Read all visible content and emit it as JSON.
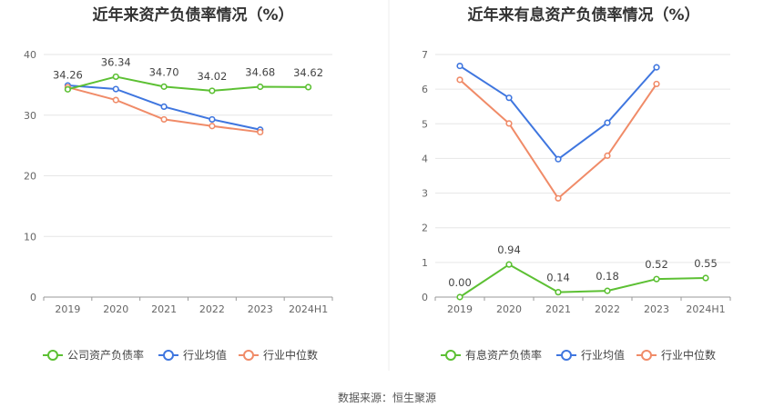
{
  "source": "数据来源：恒生聚源",
  "colors": {
    "company": "#5cc033",
    "avg": "#3f76df",
    "median": "#f08b68"
  },
  "chart_data": [
    {
      "type": "line",
      "title": "近年来资产负债率情况（%）",
      "categories": [
        "2019",
        "2020",
        "2021",
        "2022",
        "2023",
        "2024H1"
      ],
      "ylim": [
        0,
        40
      ],
      "yticks": [
        0,
        10,
        20,
        30,
        40
      ],
      "grid": true,
      "legend": "bottom",
      "series": [
        {
          "name": "公司资产负债率",
          "color": "#5cc033",
          "labeled": true,
          "values": [
            34.26,
            36.34,
            34.7,
            34.02,
            34.68,
            34.62
          ]
        },
        {
          "name": "行业均值",
          "color": "#3f76df",
          "labeled": false,
          "values": [
            34.9,
            34.3,
            31.4,
            29.3,
            27.6,
            null
          ]
        },
        {
          "name": "行业中位数",
          "color": "#f08b68",
          "labeled": false,
          "values": [
            34.6,
            32.5,
            29.3,
            28.2,
            27.2,
            null
          ]
        }
      ],
      "data_labels": [
        "34.26",
        "36.34",
        "34.70",
        "34.02",
        "34.68",
        "34.62"
      ]
    },
    {
      "type": "line",
      "title": "近年来有息资产负债率情况（%）",
      "categories": [
        "2019",
        "2020",
        "2021",
        "2022",
        "2023",
        "2024H1"
      ],
      "ylim": [
        0,
        7
      ],
      "yticks": [
        0,
        1,
        2,
        3,
        4,
        5,
        6,
        7
      ],
      "grid": true,
      "legend": "bottom",
      "series": [
        {
          "name": "有息资产负债率",
          "color": "#5cc033",
          "labeled": true,
          "values": [
            0.0,
            0.94,
            0.14,
            0.18,
            0.52,
            0.55
          ]
        },
        {
          "name": "行业均值",
          "color": "#3f76df",
          "labeled": false,
          "values": [
            6.67,
            5.75,
            3.98,
            5.03,
            6.63,
            null
          ]
        },
        {
          "name": "行业中位数",
          "color": "#f08b68",
          "labeled": false,
          "values": [
            6.27,
            5.01,
            2.85,
            4.08,
            6.15,
            null
          ]
        }
      ],
      "data_labels": [
        "0.00",
        "0.94",
        "0.14",
        "0.18",
        "0.52",
        "0.55"
      ]
    }
  ]
}
